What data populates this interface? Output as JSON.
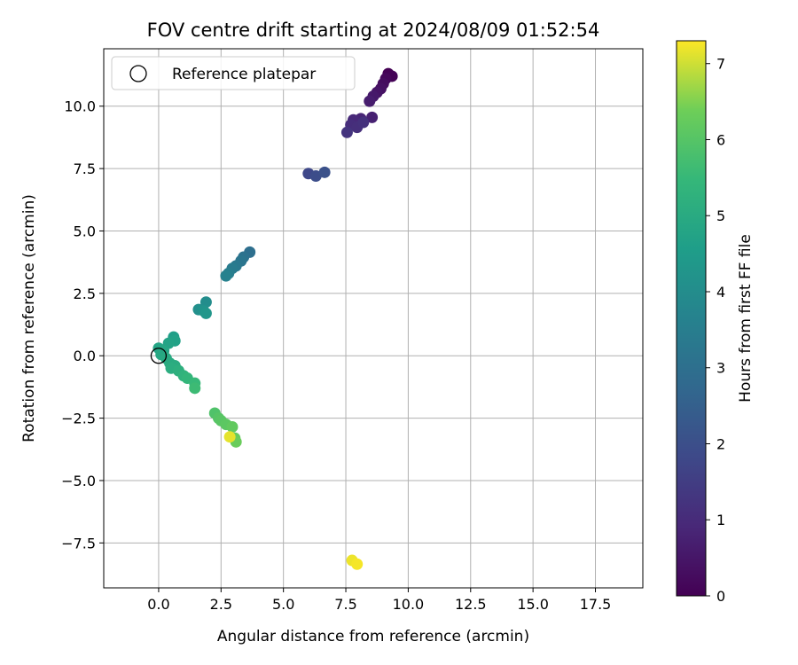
{
  "chart_data": {
    "type": "scatter",
    "title": "FOV centre drift starting at 2024/08/09 01:52:54",
    "xlabel": "Angular distance from reference (arcmin)",
    "ylabel": "Rotation from reference (arcmin)",
    "xlim": [
      -2.2,
      19.4
    ],
    "ylim": [
      -9.3,
      12.3
    ],
    "xticks": [
      0.0,
      2.5,
      5.0,
      7.5,
      10.0,
      12.5,
      15.0,
      17.5
    ],
    "xtick_labels": [
      "0.0",
      "2.5",
      "5.0",
      "7.5",
      "10.0",
      "12.5",
      "15.0",
      "17.5"
    ],
    "yticks": [
      -7.5,
      -5.0,
      -2.5,
      0.0,
      2.5,
      5.0,
      7.5,
      10.0
    ],
    "ytick_labels": [
      "−7.5",
      "−5.0",
      "−2.5",
      "0.0",
      "2.5",
      "5.0",
      "7.5",
      "10.0"
    ],
    "grid": true,
    "colormap": "viridis",
    "colorbar": {
      "label": "Hours from first FF file",
      "range": [
        0,
        7.3
      ],
      "ticks": [
        0,
        1,
        2,
        3,
        4,
        5,
        6,
        7
      ],
      "tick_labels": [
        "0",
        "1",
        "2",
        "3",
        "4",
        "5",
        "6",
        "7"
      ]
    },
    "legend": {
      "placement": "top-left",
      "entries": [
        {
          "label": "Reference platepar",
          "marker": "open-circle"
        }
      ]
    },
    "reference_point": {
      "x": 0.0,
      "y": 0.0,
      "label": "Reference platepar"
    },
    "series": [
      {
        "points": [
          {
            "x": 9.2,
            "y": 11.3,
            "h": 0.0
          },
          {
            "x": 9.35,
            "y": 11.2,
            "h": 0.05
          },
          {
            "x": 9.1,
            "y": 11.1,
            "h": 0.15
          },
          {
            "x": 9.0,
            "y": 10.9,
            "h": 0.25
          },
          {
            "x": 8.9,
            "y": 10.7,
            "h": 0.35
          },
          {
            "x": 8.75,
            "y": 10.55,
            "h": 0.45
          },
          {
            "x": 8.6,
            "y": 10.4,
            "h": 0.55
          },
          {
            "x": 8.45,
            "y": 10.2,
            "h": 0.65
          },
          {
            "x": 8.55,
            "y": 9.55,
            "h": 0.75
          },
          {
            "x": 8.1,
            "y": 9.5,
            "h": 0.85
          },
          {
            "x": 7.8,
            "y": 9.45,
            "h": 0.95
          },
          {
            "x": 7.7,
            "y": 9.25,
            "h": 1.05
          },
          {
            "x": 7.95,
            "y": 9.15,
            "h": 1.1
          },
          {
            "x": 8.2,
            "y": 9.35,
            "h": 1.15
          },
          {
            "x": 7.55,
            "y": 8.95,
            "h": 1.25
          },
          {
            "x": 6.0,
            "y": 7.3,
            "h": 1.8
          },
          {
            "x": 6.3,
            "y": 7.2,
            "h": 1.95
          },
          {
            "x": 6.65,
            "y": 7.35,
            "h": 2.05
          },
          {
            "x": 3.65,
            "y": 4.15,
            "h": 3.0
          },
          {
            "x": 3.4,
            "y": 3.95,
            "h": 3.1
          },
          {
            "x": 3.3,
            "y": 3.8,
            "h": 3.2
          },
          {
            "x": 3.1,
            "y": 3.6,
            "h": 3.3
          },
          {
            "x": 2.95,
            "y": 3.5,
            "h": 3.4
          },
          {
            "x": 2.8,
            "y": 3.3,
            "h": 3.5
          },
          {
            "x": 2.7,
            "y": 3.2,
            "h": 3.6
          },
          {
            "x": 1.9,
            "y": 2.15,
            "h": 4.0
          },
          {
            "x": 1.6,
            "y": 1.85,
            "h": 4.1
          },
          {
            "x": 1.8,
            "y": 1.8,
            "h": 4.2
          },
          {
            "x": 1.9,
            "y": 1.7,
            "h": 4.3
          },
          {
            "x": 0.6,
            "y": 0.75,
            "h": 4.6
          },
          {
            "x": 0.65,
            "y": 0.6,
            "h": 4.7
          },
          {
            "x": 0.4,
            "y": 0.5,
            "h": 4.75
          },
          {
            "x": 0.0,
            "y": 0.3,
            "h": 4.8
          },
          {
            "x": 0.2,
            "y": 0.2,
            "h": 4.85
          },
          {
            "x": 0.1,
            "y": 0.05,
            "h": 4.9
          },
          {
            "x": 0.3,
            "y": -0.1,
            "h": 4.95
          },
          {
            "x": 0.45,
            "y": -0.3,
            "h": 5.0
          },
          {
            "x": 0.65,
            "y": -0.4,
            "h": 5.05
          },
          {
            "x": 0.5,
            "y": -0.5,
            "h": 5.1
          },
          {
            "x": 0.8,
            "y": -0.6,
            "h": 5.2
          },
          {
            "x": 1.0,
            "y": -0.8,
            "h": 5.3
          },
          {
            "x": 1.15,
            "y": -0.9,
            "h": 5.4
          },
          {
            "x": 1.45,
            "y": -1.1,
            "h": 5.5
          },
          {
            "x": 1.45,
            "y": -1.3,
            "h": 5.6
          },
          {
            "x": 2.25,
            "y": -2.3,
            "h": 5.9
          },
          {
            "x": 2.4,
            "y": -2.5,
            "h": 6.0
          },
          {
            "x": 2.5,
            "y": -2.6,
            "h": 6.05
          },
          {
            "x": 2.7,
            "y": -2.75,
            "h": 6.1
          },
          {
            "x": 2.95,
            "y": -2.85,
            "h": 6.2
          },
          {
            "x": 3.05,
            "y": -3.3,
            "h": 6.25
          },
          {
            "x": 3.1,
            "y": -3.45,
            "h": 6.3
          },
          {
            "x": 2.85,
            "y": -3.25,
            "h": 7.15
          },
          {
            "x": 7.75,
            "y": -8.2,
            "h": 7.2
          },
          {
            "x": 7.95,
            "y": -8.35,
            "h": 7.25
          }
        ]
      }
    ]
  }
}
